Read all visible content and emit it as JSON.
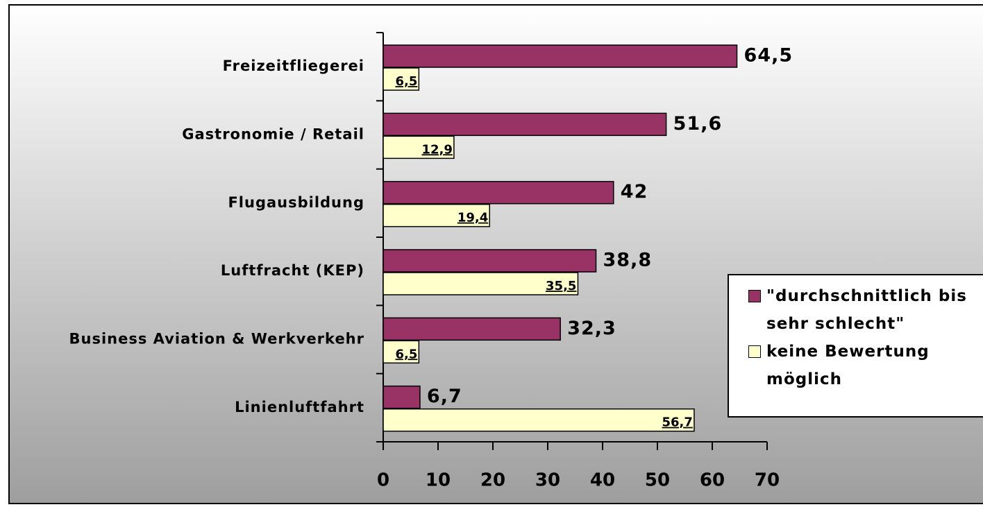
{
  "chart_data": {
    "type": "bar",
    "orientation": "horizontal",
    "categories": [
      "Freizeitfliegerei",
      "Gastronomie / Retail",
      "Flugausbildung",
      "Luftfracht (KEP)",
      "Business Aviation & Werkverkehr",
      "Linienluftfahrt"
    ],
    "series": [
      {
        "name": "\"durchschnittlich bis sehr schlecht\"",
        "color": "#993366",
        "values": [
          64.5,
          51.6,
          42,
          38.8,
          32.3,
          6.7
        ],
        "value_labels": [
          "64,5",
          "51,6",
          "42",
          "38,8",
          "32,3",
          "6,7"
        ]
      },
      {
        "name": "keine Bewertung möglich",
        "color": "#ffffcc",
        "values": [
          6.5,
          12.9,
          19.4,
          35.5,
          6.5,
          56.7
        ],
        "value_labels": [
          "6,5",
          "12,9",
          "19,4",
          "35,5",
          "6,5",
          "56,7"
        ]
      }
    ],
    "xlim": [
      0,
      70
    ],
    "xticks": [
      0,
      10,
      20,
      30,
      40,
      50,
      60,
      70
    ],
    "legend": "right"
  }
}
